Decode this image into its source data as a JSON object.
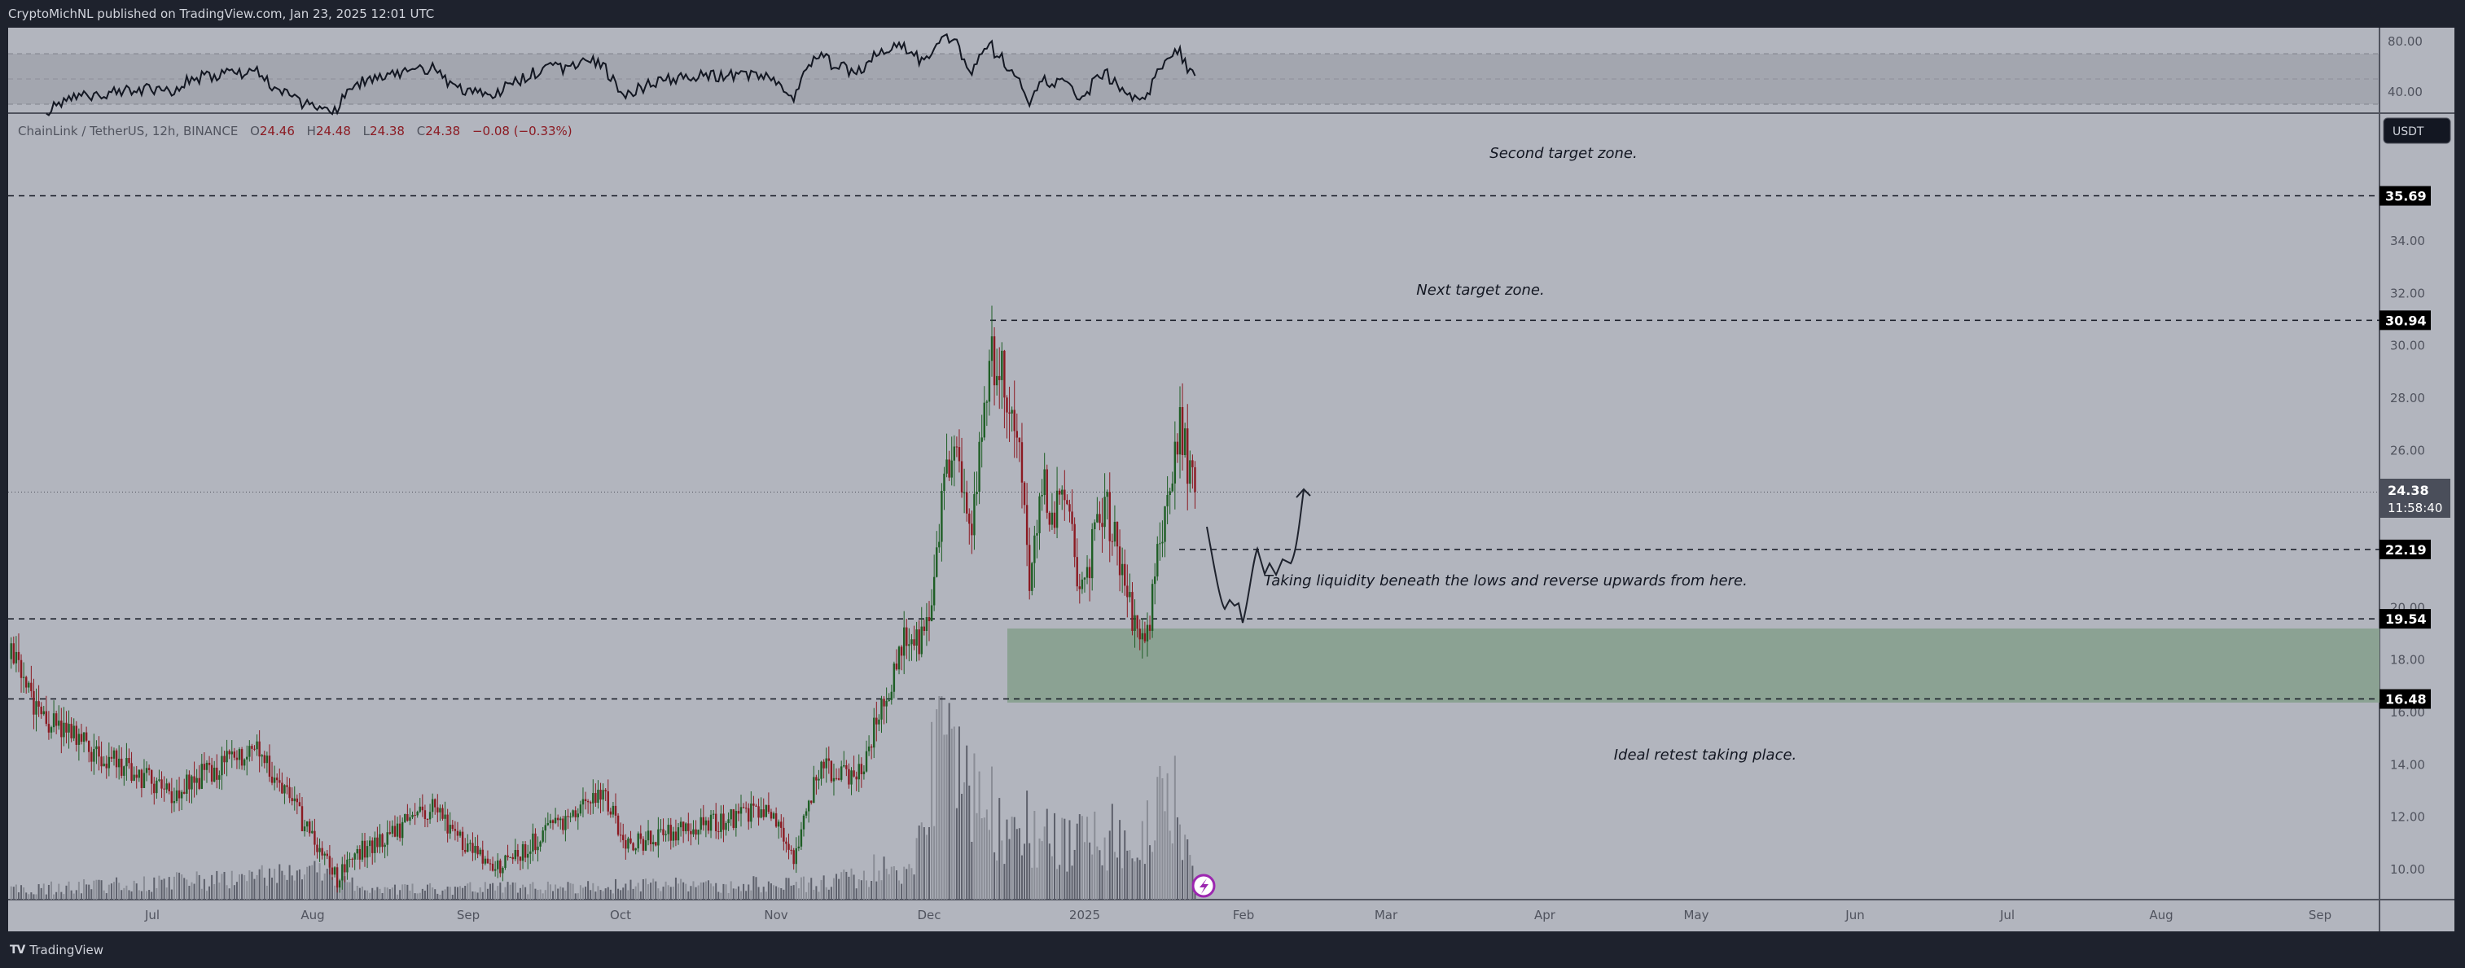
{
  "header": {
    "title": "CryptoMichNL published on TradingView.com, Jan 23, 2025 12:01 UTC"
  },
  "legend": {
    "symbol": "ChainLink / TetherUS, 12h, BINANCE",
    "o_label": "O",
    "o": "24.46",
    "h_label": "H",
    "h": "24.48",
    "l_label": "L",
    "l": "24.38",
    "c_label": "C",
    "c": "24.38",
    "change": "−0.08 (−0.33%)"
  },
  "rsi_axis": [
    "80.00",
    "40.00"
  ],
  "currency_button": "USDT",
  "price_axis": [
    "34.00",
    "32.00",
    "30.00",
    "28.00",
    "26.00",
    "20.00",
    "18.00",
    "16.00",
    "14.00",
    "12.00",
    "10.00"
  ],
  "levels": [
    {
      "label": "35.69",
      "value": 35.69
    },
    {
      "label": "30.94",
      "value": 30.94
    },
    {
      "label": "22.19",
      "value": 22.19
    },
    {
      "label": "19.54",
      "value": 19.54
    },
    {
      "label": "16.48",
      "value": 16.48
    }
  ],
  "current_price": {
    "price": "24.38",
    "countdown": "11:58:40",
    "value": 24.38
  },
  "annotations": {
    "second_target": "Second target zone.",
    "next_target": "Next target zone.",
    "liquidity": "Taking liquidity beneath the lows and reverse upwards from here.",
    "retest": "Ideal retest taking place."
  },
  "time_axis": [
    "Jul",
    "Aug",
    "Sep",
    "Oct",
    "Nov",
    "Dec",
    "2025",
    "Feb",
    "Mar",
    "Apr",
    "May",
    "Jun",
    "Jul",
    "Aug",
    "Sep"
  ],
  "footer": {
    "brand": "TradingView",
    "logo": "TV"
  },
  "colors": {
    "up": "#1e5e25",
    "down": "#8b1a22",
    "background": "#b2b5be",
    "zone": "#8ba293",
    "frame": "#1e222d"
  },
  "chart_data": {
    "type": "candlestick",
    "symbol": "LINK/USDT",
    "interval": "12h",
    "ylim": [
      8.5,
      37.5
    ],
    "scale": "linear",
    "demand_zone": [
      16.48,
      19.2
    ],
    "close_path": [
      [
        "2024-06-01",
        18.0
      ],
      [
        "2024-06-08",
        15.6
      ],
      [
        "2024-06-18",
        14.4
      ],
      [
        "2024-07-03",
        12.9
      ],
      [
        "2024-07-20",
        14.7
      ],
      [
        "2024-08-05",
        9.6
      ],
      [
        "2024-08-08",
        10.5
      ],
      [
        "2024-08-24",
        12.3
      ],
      [
        "2024-09-05",
        9.9
      ],
      [
        "2024-09-27",
        12.9
      ],
      [
        "2024-10-02",
        10.9
      ],
      [
        "2024-10-22",
        11.9
      ],
      [
        "2024-10-30",
        12.3
      ],
      [
        "2024-11-04",
        10.5
      ],
      [
        "2024-11-09",
        13.8
      ],
      [
        "2024-11-17",
        13.6
      ],
      [
        "2024-11-21",
        15.9
      ],
      [
        "2024-11-26",
        18.6
      ],
      [
        "2024-12-01",
        19.0
      ],
      [
        "2024-12-03",
        22.8
      ],
      [
        "2024-12-04",
        25.8
      ],
      [
        "2024-12-07",
        25.2
      ],
      [
        "2024-12-09",
        22.8
      ],
      [
        "2024-12-11",
        25.5
      ],
      [
        "2024-12-13",
        29.8
      ],
      [
        "2024-12-16",
        28.7
      ],
      [
        "2024-12-19",
        26.2
      ],
      [
        "2024-12-21",
        21.0
      ],
      [
        "2024-12-24",
        25.2
      ],
      [
        "2024-12-25",
        22.8
      ],
      [
        "2024-12-28",
        24.6
      ],
      [
        "2024-12-31",
        20.4
      ],
      [
        "2025-01-05",
        24.0
      ],
      [
        "2025-01-07",
        22.5
      ],
      [
        "2025-01-09",
        20.4
      ],
      [
        "2025-01-13",
        18.3
      ],
      [
        "2025-01-15",
        21.0
      ],
      [
        "2025-01-18",
        25.2
      ],
      [
        "2025-01-20",
        26.8
      ],
      [
        "2025-01-23",
        24.38
      ]
    ],
    "volume_profile": [
      [
        "2024-06-01",
        15
      ],
      [
        "2024-08-05",
        40
      ],
      [
        "2024-08-10",
        15
      ],
      [
        "2024-11-10",
        25
      ],
      [
        "2024-11-28",
        60
      ],
      [
        "2024-12-03",
        230
      ],
      [
        "2024-12-12",
        140
      ],
      [
        "2024-12-25",
        90
      ],
      [
        "2025-01-10",
        100
      ],
      [
        "2025-01-19",
        150
      ],
      [
        "2025-01-23",
        20
      ]
    ],
    "projection_path": "down to ~20.8 below 22.19, then up past 25"
  }
}
